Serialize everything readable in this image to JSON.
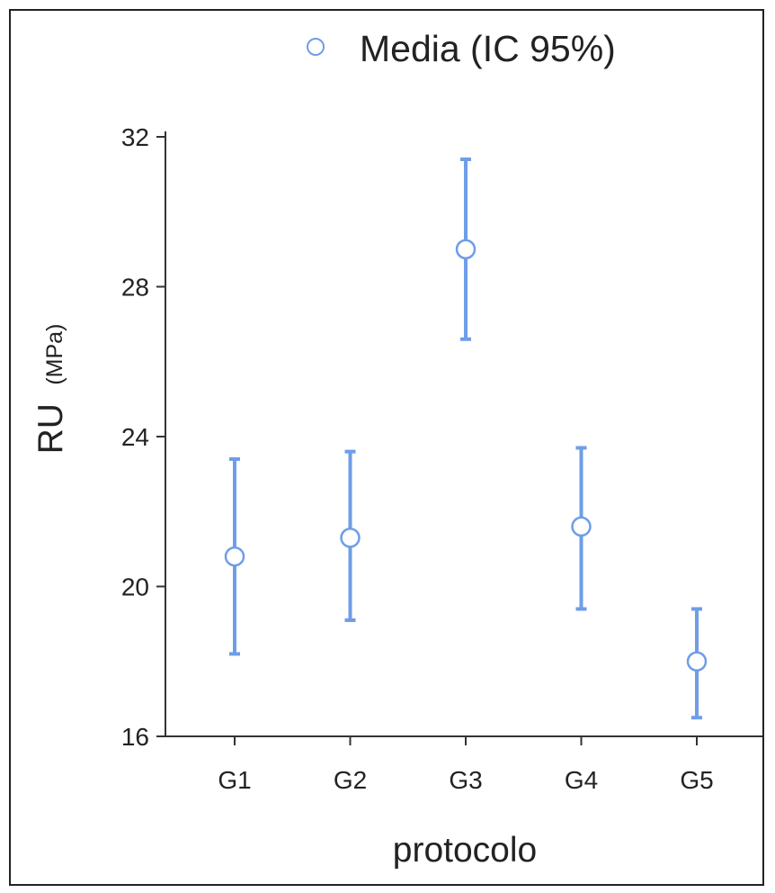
{
  "chart_data": {
    "type": "errorbar",
    "title": "",
    "legend": {
      "label": "Media (IC 95%)",
      "placement": "top-center"
    },
    "xlabel": "protocolo",
    "ylabel_main": "RU",
    "ylabel_unit": "(MPa)",
    "categories": [
      "G1",
      "G2",
      "G3",
      "G4",
      "G5"
    ],
    "ylim": [
      16,
      32
    ],
    "yticks": [
      16,
      20,
      24,
      28,
      32
    ],
    "series": [
      {
        "name": "Media (IC 95%)",
        "mean": [
          20.8,
          21.3,
          29.0,
          21.6,
          18.0
        ],
        "lower": [
          18.2,
          19.1,
          26.6,
          19.4,
          16.5
        ],
        "upper": [
          23.4,
          23.6,
          31.4,
          23.7,
          19.4
        ]
      }
    ],
    "colors": {
      "series": "#6f9de8",
      "axis": "#333333",
      "text": "#222222"
    },
    "grid": false
  }
}
